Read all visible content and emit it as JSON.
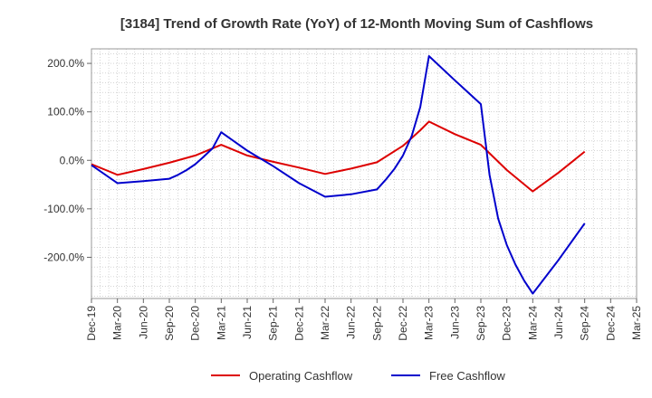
{
  "chart_data": {
    "type": "line",
    "title": "[3184]  Trend of Growth Rate (YoY) of 12-Month Moving Sum of Cashflows",
    "xlabel": "",
    "ylabel": "",
    "x_ticks": [
      "Dec-19",
      "Mar-20",
      "Jun-20",
      "Sep-20",
      "Dec-20",
      "Mar-21",
      "Jun-21",
      "Sep-21",
      "Dec-21",
      "Mar-22",
      "Jun-22",
      "Sep-22",
      "Dec-22",
      "Mar-23",
      "Jun-23",
      "Sep-23",
      "Dec-23",
      "Mar-24",
      "Jun-24",
      "Sep-24",
      "Dec-24",
      "Mar-25"
    ],
    "y_ticks": [
      200,
      100,
      0,
      -100,
      -200
    ],
    "y_tick_labels": [
      "200.0%",
      "100.0%",
      "0.0%",
      "-100.0%",
      "-200.0%"
    ],
    "ylim": [
      -285,
      230
    ],
    "grid": true,
    "legend_position": "bottom",
    "series": [
      {
        "name": "Operating Cashflow",
        "color": "#dd0000",
        "x": [
          "Dec-19",
          "Mar-20",
          "Jun-20",
          "Sep-20",
          "Dec-20",
          "Mar-21",
          "Jun-21",
          "Sep-21",
          "Dec-21",
          "Mar-22",
          "Jun-22",
          "Sep-22",
          "Dec-22",
          "Jan-23",
          "Feb-23",
          "Mar-23",
          "Jun-23",
          "Sep-23",
          "Dec-23",
          "Mar-24",
          "Jun-24",
          "Sep-24"
        ],
        "values": [
          -8,
          -30,
          -18,
          -5,
          10,
          32,
          10,
          -3,
          -15,
          -28,
          -17,
          -4,
          30,
          46,
          62,
          80,
          54,
          32,
          -20,
          -64,
          -25,
          18
        ]
      },
      {
        "name": "Free Cashflow",
        "color": "#0000cc",
        "x": [
          "Dec-19",
          "Mar-20",
          "Jun-20",
          "Sep-20",
          "Oct-20",
          "Nov-20",
          "Dec-20",
          "Jan-21",
          "Feb-21",
          "Mar-21",
          "Jun-21",
          "Sep-21",
          "Dec-21",
          "Mar-22",
          "Jun-22",
          "Sep-22",
          "Oct-22",
          "Nov-22",
          "Dec-22",
          "Jan-23",
          "Feb-23",
          "Mar-23",
          "Jun-23",
          "Sep-23",
          "Oct-23",
          "Nov-23",
          "Dec-23",
          "Jan-24",
          "Feb-24",
          "Mar-24",
          "Jun-24",
          "Sep-24"
        ],
        "values": [
          -10,
          -47,
          -43,
          -38,
          -30,
          -20,
          -8,
          8,
          25,
          58,
          20,
          -12,
          -47,
          -75,
          -70,
          -60,
          -40,
          -18,
          10,
          50,
          110,
          215,
          165,
          116,
          -30,
          -120,
          -175,
          -215,
          -248,
          -275,
          -205,
          -130
        ]
      }
    ]
  }
}
